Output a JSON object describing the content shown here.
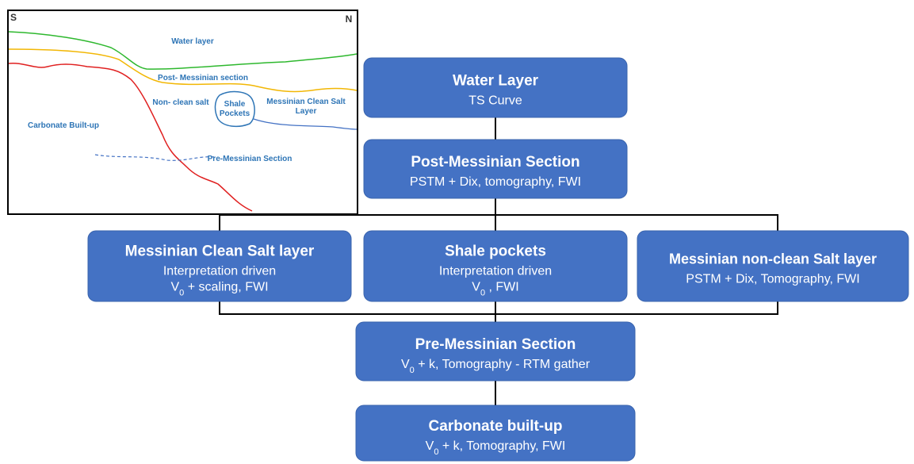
{
  "sketch": {
    "compass": {
      "south": "S",
      "north": "N"
    },
    "labels": {
      "water": "Water layer",
      "post_messinian": "Post- Messinian section",
      "non_clean_salt": "Non- clean salt",
      "shale": [
        "Shale",
        "Pockets"
      ],
      "clean_salt": [
        "Messinian Clean Salt",
        "Layer"
      ],
      "carbonate": "Carbonate Built-up",
      "pre_messinian": "Pre-Messinian Section"
    }
  },
  "nodes": [
    {
      "title": "Water Layer",
      "lines": [
        [
          {
            "text": "TS Curve"
          }
        ]
      ]
    },
    {
      "title": "Post-Messinian Section",
      "lines": [
        [
          {
            "text": "PSTM + Dix, tomography, FWI"
          }
        ]
      ]
    },
    {
      "title": "Messinian Clean Salt layer",
      "lines": [
        [
          {
            "text": "Interpretation driven"
          }
        ],
        [
          {
            "text": "V"
          },
          {
            "text": "0",
            "sub": true
          },
          {
            "text": " + scaling, FWI"
          }
        ]
      ]
    },
    {
      "title": "Shale pockets",
      "lines": [
        [
          {
            "text": "Interpretation driven"
          }
        ],
        [
          {
            "text": "V"
          },
          {
            "text": "0",
            "sub": true
          },
          {
            "text": " , FWI"
          }
        ]
      ]
    },
    {
      "title": "Messinian non-clean Salt layer",
      "lines": [
        [
          {
            "text": "PSTM + Dix, Tomography, FWI"
          }
        ]
      ]
    },
    {
      "title": "Pre-Messinian Section",
      "lines": [
        [
          {
            "text": "V"
          },
          {
            "text": "0",
            "sub": true
          },
          {
            "text": " + k, Tomography - RTM gather"
          }
        ]
      ]
    },
    {
      "title": "Carbonate built-up",
      "lines": [
        [
          {
            "text": "V"
          },
          {
            "text": "0",
            "sub": true
          },
          {
            "text": " + k, Tomography, FWI"
          }
        ]
      ]
    }
  ]
}
